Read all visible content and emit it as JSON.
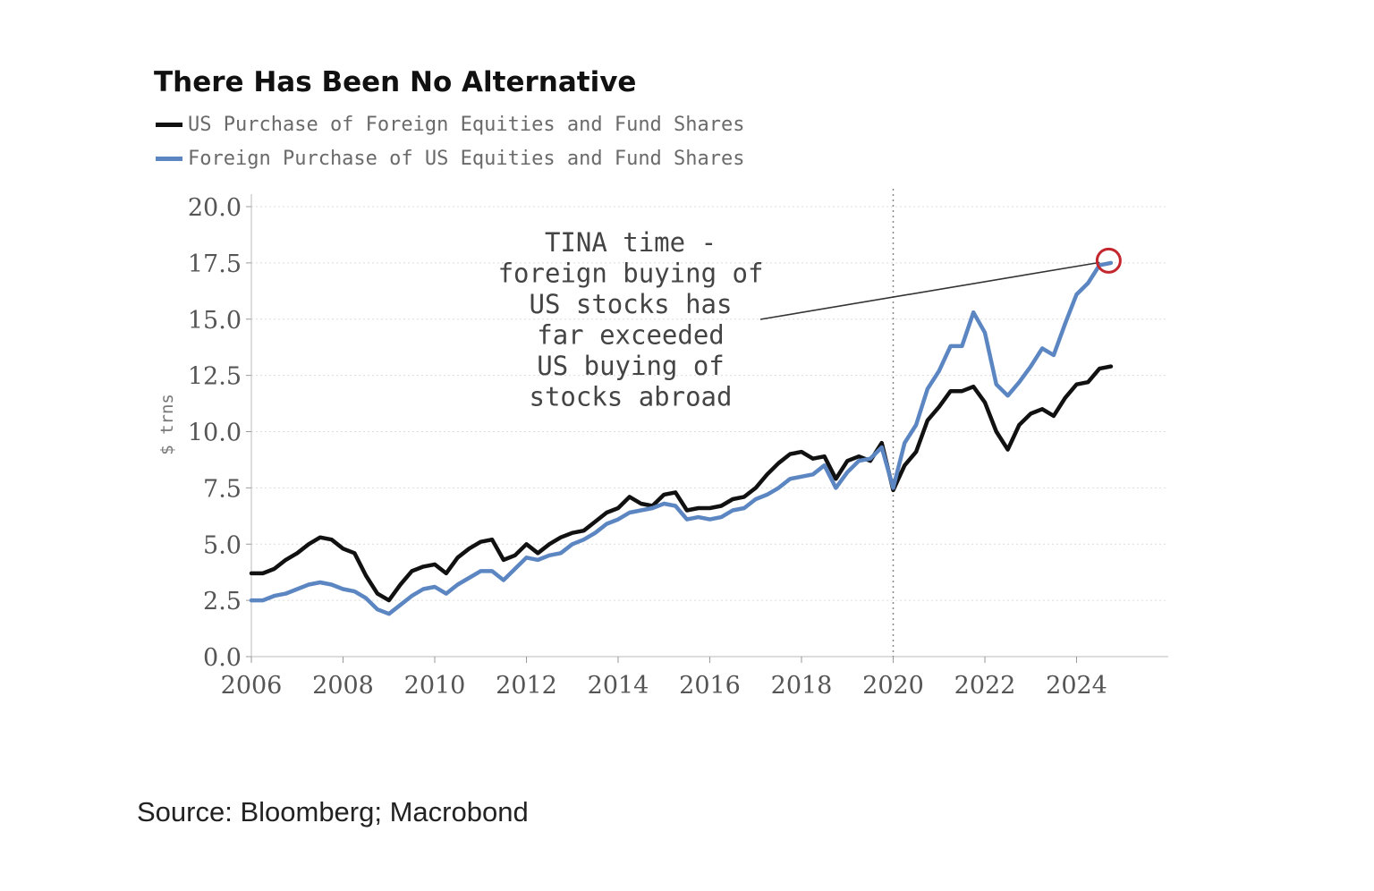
{
  "chart_data": {
    "type": "line",
    "title": "There Has Been No Alternative",
    "ylabel": "$ trns",
    "xlabel": "",
    "xlim": [
      2006,
      2026
    ],
    "ylim": [
      0,
      20
    ],
    "yticks": [
      0,
      2.5,
      5,
      7.5,
      10,
      12.5,
      15,
      17.5,
      20
    ],
    "ytick_labels": [
      "0.0",
      "2.5",
      "5.0",
      "7.5",
      "10.0",
      "12.5",
      "15.0",
      "17.5",
      "20.0"
    ],
    "xticks": [
      2006,
      2008,
      2010,
      2012,
      2014,
      2016,
      2018,
      2020,
      2022,
      2024
    ],
    "xtick_labels": [
      "2006",
      "2008",
      "2010",
      "2012",
      "2014",
      "2016",
      "2018",
      "2020",
      "2022",
      "2024"
    ],
    "grid": "horizontal dotted",
    "legend_position": "top-left",
    "reference_line_x": 2020.0,
    "series": [
      {
        "name": "US Purchase of Foreign Equities and Fund Shares",
        "color": "#111111",
        "x": [
          2006.0,
          2006.25,
          2006.5,
          2006.75,
          2007.0,
          2007.25,
          2007.5,
          2007.75,
          2008.0,
          2008.25,
          2008.5,
          2008.75,
          2009.0,
          2009.25,
          2009.5,
          2009.75,
          2010.0,
          2010.25,
          2010.5,
          2010.75,
          2011.0,
          2011.25,
          2011.5,
          2011.75,
          2012.0,
          2012.25,
          2012.5,
          2012.75,
          2013.0,
          2013.25,
          2013.5,
          2013.75,
          2014.0,
          2014.25,
          2014.5,
          2014.75,
          2015.0,
          2015.25,
          2015.5,
          2015.75,
          2016.0,
          2016.25,
          2016.5,
          2016.75,
          2017.0,
          2017.25,
          2017.5,
          2017.75,
          2018.0,
          2018.25,
          2018.5,
          2018.75,
          2019.0,
          2019.25,
          2019.5,
          2019.75,
          2020.0,
          2020.25,
          2020.5,
          2020.75,
          2021.0,
          2021.25,
          2021.5,
          2021.75,
          2022.0,
          2022.25,
          2022.5,
          2022.75,
          2023.0,
          2023.25,
          2023.5,
          2023.75,
          2024.0,
          2024.25,
          2024.5,
          2024.75
        ],
        "values": [
          3.7,
          3.7,
          3.9,
          4.3,
          4.6,
          5.0,
          5.3,
          5.2,
          4.8,
          4.6,
          3.6,
          2.8,
          2.5,
          3.2,
          3.8,
          4.0,
          4.1,
          3.7,
          4.4,
          4.8,
          5.1,
          5.2,
          4.3,
          4.5,
          5.0,
          4.6,
          5.0,
          5.3,
          5.5,
          5.6,
          6.0,
          6.4,
          6.6,
          7.1,
          6.8,
          6.7,
          7.2,
          7.3,
          6.5,
          6.6,
          6.6,
          6.7,
          7.0,
          7.1,
          7.5,
          8.1,
          8.6,
          9.0,
          9.1,
          8.8,
          8.9,
          7.9,
          8.7,
          8.9,
          8.7,
          9.5,
          7.4,
          8.5,
          9.1,
          10.5,
          11.1,
          11.8,
          11.8,
          12.0,
          11.3,
          10.0,
          9.2,
          10.3,
          10.8,
          11.0,
          10.7,
          11.5,
          12.1,
          12.2,
          12.8,
          12.9
        ]
      },
      {
        "name": "Foreign Purchase of US Equities and Fund Shares",
        "color": "#5b86c2",
        "x": [
          2006.0,
          2006.25,
          2006.5,
          2006.75,
          2007.0,
          2007.25,
          2007.5,
          2007.75,
          2008.0,
          2008.25,
          2008.5,
          2008.75,
          2009.0,
          2009.25,
          2009.5,
          2009.75,
          2010.0,
          2010.25,
          2010.5,
          2010.75,
          2011.0,
          2011.25,
          2011.5,
          2011.75,
          2012.0,
          2012.25,
          2012.5,
          2012.75,
          2013.0,
          2013.25,
          2013.5,
          2013.75,
          2014.0,
          2014.25,
          2014.5,
          2014.75,
          2015.0,
          2015.25,
          2015.5,
          2015.75,
          2016.0,
          2016.25,
          2016.5,
          2016.75,
          2017.0,
          2017.25,
          2017.5,
          2017.75,
          2018.0,
          2018.25,
          2018.5,
          2018.75,
          2019.0,
          2019.25,
          2019.5,
          2019.75,
          2020.0,
          2020.25,
          2020.5,
          2020.75,
          2021.0,
          2021.25,
          2021.5,
          2021.75,
          2022.0,
          2022.25,
          2022.5,
          2022.75,
          2023.0,
          2023.25,
          2023.5,
          2023.75,
          2024.0,
          2024.25,
          2024.5,
          2024.75
        ],
        "values": [
          2.5,
          2.5,
          2.7,
          2.8,
          3.0,
          3.2,
          3.3,
          3.2,
          3.0,
          2.9,
          2.6,
          2.1,
          1.9,
          2.3,
          2.7,
          3.0,
          3.1,
          2.8,
          3.2,
          3.5,
          3.8,
          3.8,
          3.4,
          3.9,
          4.4,
          4.3,
          4.5,
          4.6,
          5.0,
          5.2,
          5.5,
          5.9,
          6.1,
          6.4,
          6.5,
          6.6,
          6.8,
          6.7,
          6.1,
          6.2,
          6.1,
          6.2,
          6.5,
          6.6,
          7.0,
          7.2,
          7.5,
          7.9,
          8.0,
          8.1,
          8.5,
          7.5,
          8.2,
          8.7,
          8.8,
          9.3,
          7.5,
          9.5,
          10.3,
          11.9,
          12.7,
          13.8,
          13.8,
          15.3,
          14.4,
          12.1,
          11.6,
          12.2,
          12.9,
          13.7,
          13.4,
          14.8,
          16.1,
          16.6,
          17.4,
          17.5
        ]
      }
    ],
    "annotation": {
      "lines": [
        "TINA time -",
        "foreign buying of",
        "US stocks has",
        "far exceeded",
        "US buying of",
        "stocks abroad"
      ],
      "pointer_target": [
        2024.7,
        17.6
      ]
    }
  },
  "source": "Source: Bloomberg; Macrobond"
}
